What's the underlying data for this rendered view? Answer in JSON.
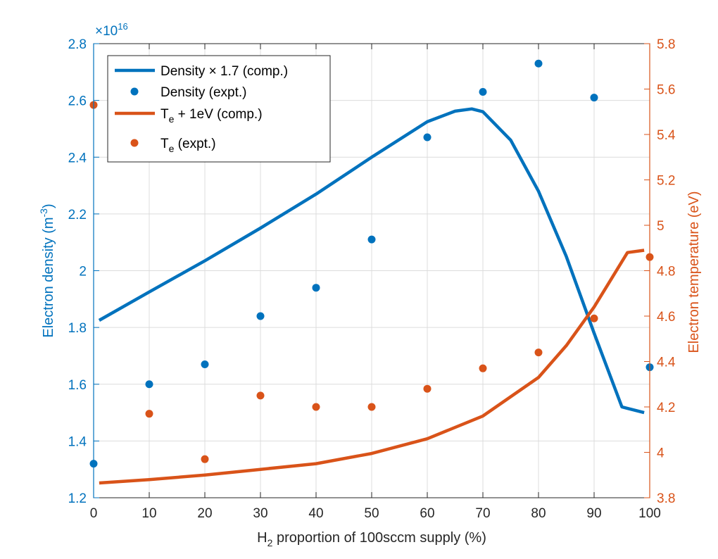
{
  "chart_data": {
    "type": "line",
    "title": "",
    "xlabel": "H₂ proportion of 100sccm supply (%)",
    "xlabel_main": "H",
    "xlabel_sub": "2",
    "xlabel_rest": " proportion of 100sccm supply (%)",
    "xlim": [
      0,
      100
    ],
    "xticks": [
      "0",
      "10",
      "20",
      "30",
      "40",
      "50",
      "60",
      "70",
      "80",
      "90",
      "100"
    ],
    "y_left": {
      "label": "Electron density (m⁻³)",
      "label_main": "Electron density (m",
      "label_sup": "-3",
      "label_end": ")",
      "ylim": [
        1.2,
        2.8
      ],
      "ticks": [
        "1.2",
        "1.4",
        "1.6",
        "1.8",
        "2",
        "2.2",
        "2.4",
        "2.6",
        "2.8"
      ],
      "multiplier_base": "×10",
      "multiplier_exp": "16",
      "color": "#0072BD"
    },
    "y_right": {
      "label": "Electron temperature (eV)",
      "ylim": [
        3.8,
        5.8
      ],
      "ticks": [
        "3.8",
        "4",
        "4.2",
        "4.4",
        "4.6",
        "4.8",
        "5",
        "5.2",
        "5.4",
        "5.6",
        "5.8"
      ],
      "color": "#D95319"
    },
    "grid": true,
    "legend_position": "top-left",
    "series": [
      {
        "name": "Density × 1.7 (comp.)",
        "kind": "line",
        "axis": "left",
        "color": "#0072BD",
        "x": [
          1,
          10,
          20,
          30,
          40,
          50,
          60,
          65,
          68,
          70,
          75,
          80,
          85,
          90,
          95,
          99
        ],
        "y": [
          1.825,
          1.925,
          2.035,
          2.15,
          2.27,
          2.4,
          2.525,
          2.562,
          2.57,
          2.56,
          2.46,
          2.28,
          2.05,
          1.78,
          1.52,
          1.5
        ]
      },
      {
        "name": "Density (expt.)",
        "kind": "points",
        "axis": "left",
        "color": "#0072BD",
        "x": [
          0,
          10,
          20,
          30,
          40,
          50,
          60,
          70,
          80,
          90,
          100
        ],
        "y": [
          1.32,
          1.6,
          1.67,
          1.84,
          1.94,
          2.11,
          2.47,
          2.63,
          2.73,
          2.61,
          1.66
        ]
      },
      {
        "name": "T_e + 1eV (comp.)",
        "name_main": "T",
        "name_sub": "e",
        "name_rest": " + 1eV (comp.)",
        "kind": "line",
        "axis": "right",
        "color": "#D95319",
        "x": [
          1,
          10,
          20,
          30,
          40,
          50,
          60,
          70,
          80,
          85,
          90,
          93,
          96,
          99
        ],
        "y": [
          3.865,
          3.88,
          3.9,
          3.925,
          3.95,
          3.995,
          4.06,
          4.16,
          4.33,
          4.47,
          4.64,
          4.76,
          4.88,
          4.89
        ]
      },
      {
        "name": "T_e (expt.)",
        "name_main": "T",
        "name_sub": "e",
        "name_rest": " (expt.)",
        "kind": "points",
        "axis": "right",
        "color": "#D95319",
        "x": [
          0,
          10,
          20,
          30,
          40,
          50,
          60,
          70,
          80,
          90,
          100
        ],
        "y": [
          5.53,
          4.17,
          3.97,
          4.25,
          4.2,
          4.2,
          4.28,
          4.37,
          4.44,
          4.59,
          4.86
        ]
      }
    ]
  }
}
